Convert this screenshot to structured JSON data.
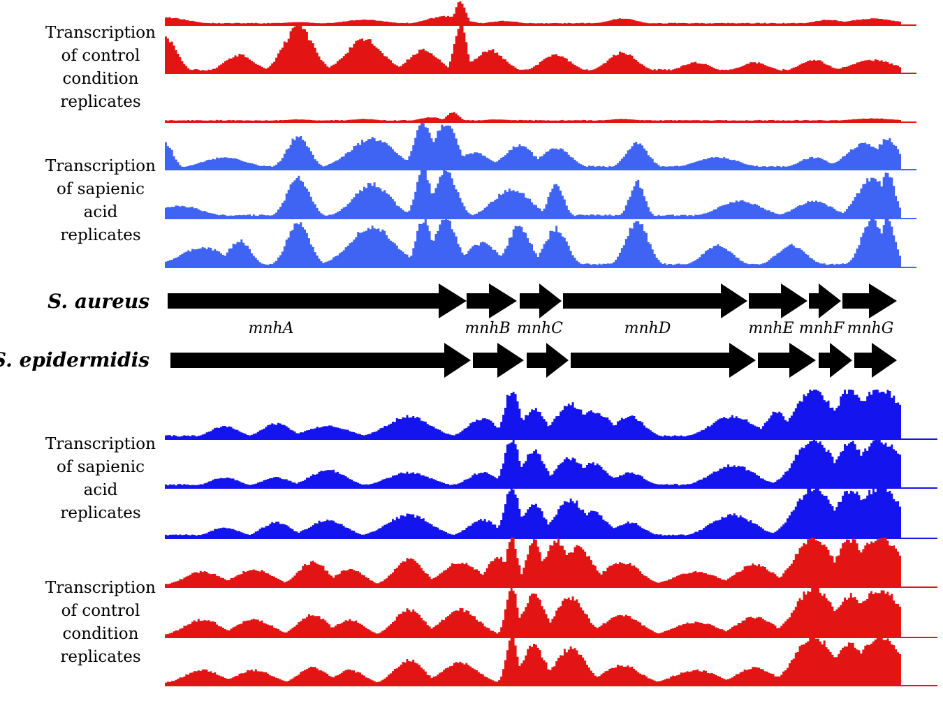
{
  "colors": {
    "control": "#e31414",
    "sapienic_sa": "#3f63f2",
    "sapienic_se": "#1414ee",
    "arrow": "#000000"
  },
  "labels": {
    "top_control": [
      "Transcription",
      "of control",
      "condition",
      "replicates"
    ],
    "top_sapienic": [
      "Transcription",
      "of sapienic",
      "acid",
      "replicates"
    ],
    "bottom_sapienic": [
      "Transcription",
      "of sapienic",
      "acid",
      "replicates"
    ],
    "bottom_control": [
      "Transcription",
      "of control",
      "condition",
      "replicates"
    ]
  },
  "species": [
    "S. aureus",
    "S. epidermidis"
  ],
  "genes": [
    "mnhA",
    "mnhB",
    "mnhC",
    "mnhD",
    "mnhE",
    "mnhF",
    "mnhG"
  ],
  "chart_data": {
    "type": "area",
    "title": "",
    "x_positions": "relative position along mnhABCDEFG operon (0-100)",
    "tracks": [
      {
        "name": "S. aureus control replicate 1",
        "condition": "control",
        "species": "S. aureus",
        "peaks": [
          [
            0,
            3,
            0.3
          ],
          [
            18,
            2.5,
            0.1
          ],
          [
            27,
            3,
            0.2
          ],
          [
            38,
            2.5,
            0.35
          ],
          [
            40,
            0.7,
            1.0
          ],
          [
            46,
            2,
            0.15
          ],
          [
            62,
            2,
            0.25
          ],
          [
            90,
            2,
            0.2
          ],
          [
            96,
            3,
            0.25
          ]
        ]
      },
      {
        "name": "S. aureus control replicate 2",
        "condition": "control",
        "species": "S. aureus",
        "peaks": [
          [
            0,
            1.5,
            0.7
          ],
          [
            10,
            2,
            0.35
          ],
          [
            18,
            2,
            0.9
          ],
          [
            27,
            2.5,
            0.65
          ],
          [
            35,
            2,
            0.45
          ],
          [
            40,
            0.8,
            1.0
          ],
          [
            44,
            2,
            0.45
          ],
          [
            53,
            2,
            0.35
          ],
          [
            62,
            2,
            0.4
          ],
          [
            72,
            2,
            0.2
          ],
          [
            80,
            2,
            0.2
          ],
          [
            88,
            2,
            0.25
          ],
          [
            96,
            3,
            0.25
          ]
        ]
      },
      {
        "name": "S. aureus control replicate 3",
        "condition": "control",
        "species": "S. aureus",
        "peaks": [
          [
            18,
            2,
            0.1
          ],
          [
            27,
            2,
            0.12
          ],
          [
            36,
            1.5,
            0.2
          ],
          [
            39,
            0.8,
            0.45
          ],
          [
            45,
            2,
            0.1
          ],
          [
            62,
            2,
            0.12
          ],
          [
            96,
            3,
            0.15
          ]
        ]
      },
      {
        "name": "S. aureus sapienic acid replicate 1",
        "condition": "sapienic",
        "species": "S. aureus",
        "peaks": [
          [
            0,
            1,
            0.55
          ],
          [
            8,
            3,
            0.25
          ],
          [
            18,
            1.5,
            0.7
          ],
          [
            28,
            3,
            0.65
          ],
          [
            35,
            1.2,
            1.0
          ],
          [
            38,
            1.5,
            1.0
          ],
          [
            42,
            2,
            0.35
          ],
          [
            48,
            2,
            0.5
          ],
          [
            53,
            2,
            0.45
          ],
          [
            64,
            1.5,
            0.55
          ],
          [
            75,
            3,
            0.25
          ],
          [
            88,
            2,
            0.25
          ],
          [
            95,
            2.5,
            0.55
          ],
          [
            98,
            1.5,
            0.65
          ]
        ]
      },
      {
        "name": "S. aureus sapienic acid replicate 2",
        "condition": "sapienic",
        "species": "S. aureus",
        "peaks": [
          [
            2,
            3,
            0.25
          ],
          [
            18,
            1.5,
            0.85
          ],
          [
            28,
            2.5,
            0.7
          ],
          [
            35,
            1,
            1.0
          ],
          [
            38,
            1.5,
            1.0
          ],
          [
            47,
            2.5,
            0.6
          ],
          [
            53,
            1,
            0.75
          ],
          [
            64,
            1,
            0.75
          ],
          [
            78,
            3,
            0.35
          ],
          [
            88,
            2.5,
            0.35
          ],
          [
            96,
            2,
            0.85
          ],
          [
            98,
            1,
            0.95
          ]
        ]
      },
      {
        "name": "S. aureus sapienic acid replicate 3",
        "condition": "sapienic",
        "species": "S. aureus",
        "peaks": [
          [
            5,
            3,
            0.4
          ],
          [
            10,
            1.5,
            0.55
          ],
          [
            18,
            1.5,
            0.95
          ],
          [
            28,
            3,
            0.85
          ],
          [
            35,
            1,
            1.0
          ],
          [
            38,
            1.5,
            1.0
          ],
          [
            43,
            2,
            0.5
          ],
          [
            48,
            1.5,
            0.85
          ],
          [
            53,
            1.5,
            0.8
          ],
          [
            64,
            1.5,
            0.95
          ],
          [
            75,
            2,
            0.45
          ],
          [
            85,
            2,
            0.45
          ],
          [
            96,
            1.5,
            1.0
          ],
          [
            98,
            1,
            1.0
          ]
        ]
      },
      {
        "name": "S. epidermidis sapienic acid replicate 1",
        "condition": "sapienic",
        "species": "S. epidermidis",
        "peaks": [
          [
            8,
            2,
            0.25
          ],
          [
            15,
            2,
            0.3
          ],
          [
            22,
            3,
            0.25
          ],
          [
            33,
            3,
            0.45
          ],
          [
            43,
            2,
            0.4
          ],
          [
            47,
            1,
            1.0
          ],
          [
            50,
            1.5,
            0.6
          ],
          [
            55,
            2,
            0.7
          ],
          [
            58,
            2.5,
            0.55
          ],
          [
            63,
            2,
            0.45
          ],
          [
            77,
            3,
            0.45
          ],
          [
            83,
            1.5,
            0.55
          ],
          [
            88,
            2.5,
            1.0
          ],
          [
            93,
            2,
            1.0
          ],
          [
            97,
            3,
            1.0
          ]
        ]
      },
      {
        "name": "S. epidermidis sapienic acid replicate 2",
        "condition": "sapienic",
        "species": "S. epidermidis",
        "peaks": [
          [
            8,
            2,
            0.2
          ],
          [
            15,
            2,
            0.2
          ],
          [
            22,
            2.5,
            0.35
          ],
          [
            33,
            3,
            0.3
          ],
          [
            43,
            2,
            0.3
          ],
          [
            47,
            1,
            1.0
          ],
          [
            50,
            1.5,
            0.75
          ],
          [
            55,
            2,
            0.6
          ],
          [
            58,
            2,
            0.5
          ],
          [
            63,
            2,
            0.3
          ],
          [
            77,
            3,
            0.45
          ],
          [
            88,
            2.5,
            1.0
          ],
          [
            93,
            2,
            0.9
          ],
          [
            97,
            3,
            0.95
          ]
        ]
      },
      {
        "name": "S. epidermidis sapienic acid replicate 3",
        "condition": "sapienic",
        "species": "S. epidermidis",
        "peaks": [
          [
            8,
            2,
            0.2
          ],
          [
            15,
            2,
            0.3
          ],
          [
            22,
            2.5,
            0.35
          ],
          [
            33,
            3,
            0.45
          ],
          [
            43,
            2,
            0.35
          ],
          [
            47,
            1,
            1.0
          ],
          [
            50,
            1.5,
            0.65
          ],
          [
            55,
            2,
            0.75
          ],
          [
            58,
            2,
            0.5
          ],
          [
            63,
            2,
            0.3
          ],
          [
            77,
            3,
            0.45
          ],
          [
            88,
            2.5,
            1.0
          ],
          [
            93,
            2,
            0.95
          ],
          [
            97,
            3,
            1.0
          ]
        ]
      },
      {
        "name": "S. epidermidis control replicate 1",
        "condition": "control",
        "species": "S. epidermidis",
        "peaks": [
          [
            5,
            2.5,
            0.3
          ],
          [
            12,
            2.5,
            0.35
          ],
          [
            20,
            2,
            0.5
          ],
          [
            25,
            2,
            0.35
          ],
          [
            33,
            2,
            0.55
          ],
          [
            40,
            2.5,
            0.5
          ],
          [
            45,
            1.5,
            0.6
          ],
          [
            47,
            0.8,
            1.0
          ],
          [
            50,
            1,
            0.95
          ],
          [
            53,
            1.5,
            0.95
          ],
          [
            56,
            2,
            0.8
          ],
          [
            62,
            2.5,
            0.5
          ],
          [
            72,
            3,
            0.3
          ],
          [
            80,
            2.5,
            0.45
          ],
          [
            88,
            2.5,
            1.0
          ],
          [
            93,
            2,
            0.95
          ],
          [
            97,
            3,
            1.0
          ]
        ]
      },
      {
        "name": "S. epidermidis control replicate 2",
        "condition": "control",
        "species": "S. epidermidis",
        "peaks": [
          [
            5,
            2.5,
            0.35
          ],
          [
            12,
            2.5,
            0.35
          ],
          [
            20,
            2,
            0.45
          ],
          [
            25,
            2,
            0.35
          ],
          [
            33,
            2,
            0.55
          ],
          [
            40,
            2.5,
            0.55
          ],
          [
            47,
            0.8,
            1.0
          ],
          [
            50,
            1.5,
            0.85
          ],
          [
            55,
            2,
            0.8
          ],
          [
            62,
            2.5,
            0.45
          ],
          [
            72,
            3,
            0.3
          ],
          [
            80,
            2.5,
            0.4
          ],
          [
            88,
            2.5,
            1.0
          ],
          [
            93,
            2,
            0.85
          ],
          [
            97,
            3,
            0.95
          ]
        ]
      },
      {
        "name": "S. epidermidis control replicate 3",
        "condition": "control",
        "species": "S. epidermidis",
        "peaks": [
          [
            5,
            2.5,
            0.3
          ],
          [
            12,
            2.5,
            0.3
          ],
          [
            20,
            2,
            0.35
          ],
          [
            25,
            2,
            0.3
          ],
          [
            33,
            2,
            0.5
          ],
          [
            40,
            2.5,
            0.45
          ],
          [
            47,
            0.8,
            0.95
          ],
          [
            50,
            1.5,
            0.8
          ],
          [
            55,
            2,
            0.75
          ],
          [
            62,
            2.5,
            0.4
          ],
          [
            72,
            3,
            0.3
          ],
          [
            80,
            2.5,
            0.35
          ],
          [
            88,
            2.5,
            1.0
          ],
          [
            93,
            2,
            0.85
          ],
          [
            97,
            3,
            0.95
          ]
        ]
      }
    ]
  }
}
